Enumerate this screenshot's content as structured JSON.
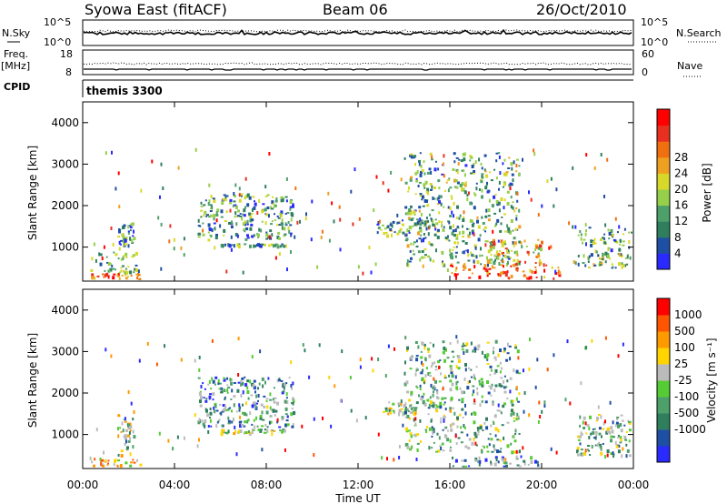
{
  "header": {
    "station": "Syowa East (fitACF)",
    "beam": "Beam 06",
    "date": "26/Oct/2010"
  },
  "noise_panel": {
    "left_label": "N.Sky",
    "left_ticks": [
      "10^5",
      "10^0"
    ],
    "right_label": "N.Search",
    "right_ticks": [
      "10^5",
      "10^0"
    ]
  },
  "freq_panel": {
    "left_label_1": "Freq.",
    "left_label_2": "[MHz]",
    "left_ticks": [
      "18",
      "8"
    ],
    "right_label": "Nave",
    "right_ticks": [
      "60",
      "0"
    ],
    "cpid_label": "CPID"
  },
  "program": "themis 3300",
  "x_axis": {
    "label": "Time UT",
    "ticks": [
      "00:00",
      "04:00",
      "08:00",
      "12:00",
      "16:00",
      "20:00",
      "00:00"
    ]
  },
  "power_panel": {
    "ylabel": "Slant Range [km]",
    "colorbar_label": "Power [dB]",
    "colorbar_ticks": [
      "28",
      "24",
      "20",
      "16",
      "12",
      "8",
      "4"
    ],
    "colors": [
      "#2a2aff",
      "#1f4fa5",
      "#2f7f5f",
      "#4ea06a",
      "#96cf4a",
      "#d8d82a",
      "#f0a020",
      "#f07010",
      "#e83020",
      "#ff0000"
    ]
  },
  "velocity_panel": {
    "ylabel": "Slant Range [km]",
    "colorbar_label": "Velocity [m s⁻¹]",
    "colorbar_ticks": [
      "1000",
      "500",
      "100",
      "25",
      "-25",
      "-100",
      "-500",
      "-1000"
    ],
    "colors": [
      "#2a2aff",
      "#1f4fa5",
      "#2f7f5f",
      "#4ea06a",
      "#55cc33",
      "#bbbbbb",
      "#ffd400",
      "#ff9900",
      "#ff5500",
      "#ff0000"
    ]
  },
  "chart_data": [
    {
      "type": "heatmap",
      "title": "Power",
      "ylabel": "Slant Range [km]",
      "xlabel": "Time UT",
      "xlim_hours": [
        0,
        24
      ],
      "ylim": [
        180,
        4500
      ],
      "yticks": [
        1000,
        2000,
        3000,
        4000
      ],
      "colorbar": {
        "label": "Power [dB]",
        "range": [
          0,
          30
        ]
      },
      "patches": [
        {
          "t0": 0.3,
          "t1": 2.5,
          "r0": 200,
          "r1": 400,
          "level": 0.8
        },
        {
          "t0": 0.3,
          "t1": 2.3,
          "r0": 400,
          "r1": 900,
          "level": 0.4
        },
        {
          "t0": 1.5,
          "t1": 2.2,
          "r0": 1000,
          "r1": 1600,
          "level": 0.3
        },
        {
          "t0": 5.0,
          "t1": 9.2,
          "r0": 1200,
          "r1": 2300,
          "level": 0.3
        },
        {
          "t0": 6.0,
          "t1": 8.8,
          "r0": 1050,
          "r1": 1100,
          "level": 0.3
        },
        {
          "t0": 12.8,
          "t1": 16.5,
          "r0": 1300,
          "r1": 1700,
          "level": 0.35
        },
        {
          "t0": 14.0,
          "t1": 19.0,
          "r0": 600,
          "r1": 3300,
          "level": 0.35
        },
        {
          "t0": 16.0,
          "t1": 20.8,
          "r0": 250,
          "r1": 600,
          "level": 0.85
        },
        {
          "t0": 17.5,
          "t1": 20.0,
          "r0": 600,
          "r1": 1200,
          "level": 0.6
        },
        {
          "t0": 21.5,
          "t1": 24.0,
          "r0": 500,
          "r1": 1500,
          "level": 0.35
        }
      ]
    },
    {
      "type": "heatmap",
      "title": "Velocity",
      "ylabel": "Slant Range [km]",
      "xlabel": "Time UT",
      "xlim_hours": [
        0,
        24
      ],
      "ylim": [
        180,
        4500
      ],
      "yticks": [
        1000,
        2000,
        3000,
        4000
      ],
      "colorbar": {
        "label": "Velocity [m s⁻¹]",
        "range": [
          -1000,
          1000
        ]
      },
      "patches": [
        {
          "t0": 0.3,
          "t1": 2.5,
          "r0": 200,
          "r1": 450,
          "level": 0.6
        },
        {
          "t0": 1.5,
          "t1": 2.2,
          "r0": 500,
          "r1": 1600,
          "level": 0.5
        },
        {
          "t0": 5.0,
          "t1": 9.2,
          "r0": 1200,
          "r1": 2400,
          "level": 0.3
        },
        {
          "t0": 6.0,
          "t1": 8.8,
          "r0": 1050,
          "r1": 1150,
          "level": 0.5
        },
        {
          "t0": 13.0,
          "t1": 14.5,
          "r0": 1500,
          "r1": 1800,
          "level": 0.5
        },
        {
          "t0": 14.0,
          "t1": 19.0,
          "r0": 600,
          "r1": 3300,
          "level": 0.4
        },
        {
          "t0": 16.0,
          "t1": 20.0,
          "r0": 250,
          "r1": 500,
          "level": 0.3
        },
        {
          "t0": 21.5,
          "t1": 24.0,
          "r0": 500,
          "r1": 1500,
          "level": 0.4
        }
      ]
    }
  ]
}
